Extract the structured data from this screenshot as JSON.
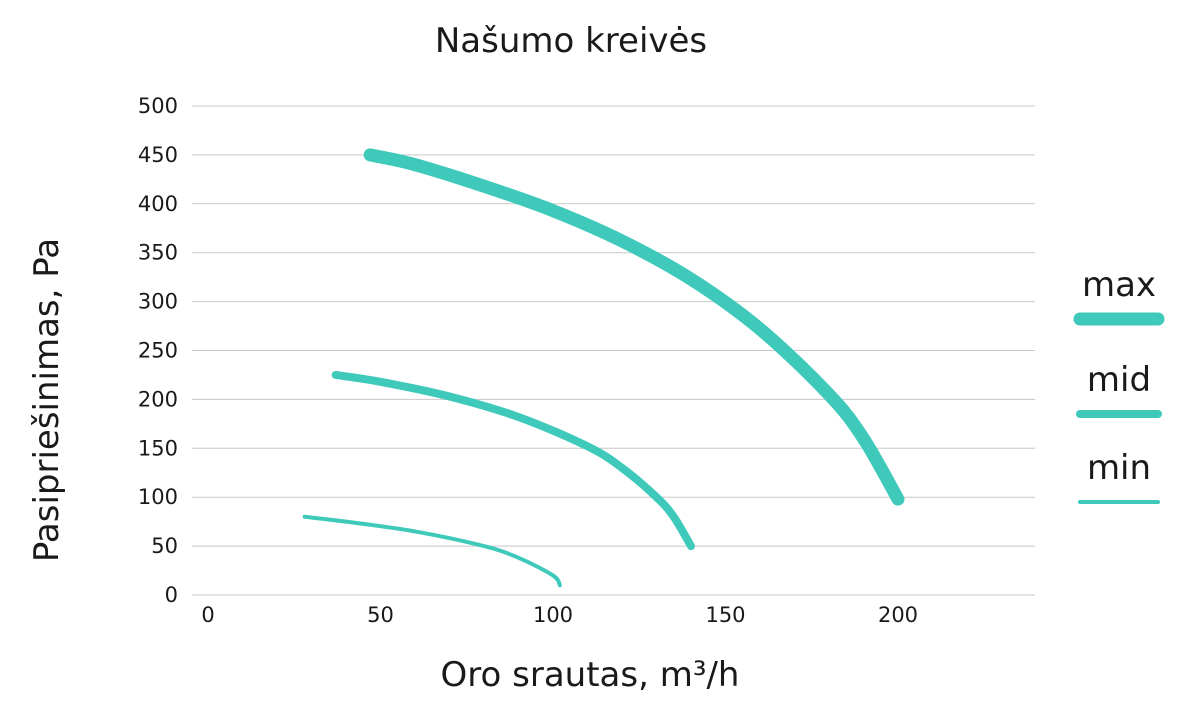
{
  "chart_data": {
    "type": "line",
    "title": "Našumo kreivės",
    "xlabel": "Oro srautas, m³/h",
    "ylabel": "Pasipriešinimas, Pa",
    "xlim": [
      0,
      240
    ],
    "ylim": [
      0,
      500
    ],
    "xticks": [
      "0",
      "50",
      "100",
      "150",
      "200"
    ],
    "yticks": [
      "0",
      "50",
      "100",
      "150",
      "200",
      "250",
      "300",
      "350",
      "400",
      "450",
      "500"
    ],
    "grid": "horizontal",
    "legend_position": "right",
    "color": "#3ec9bb",
    "series": [
      {
        "name": "max",
        "x": [
          47,
          60,
          80,
          100,
          120,
          140,
          160,
          180,
          190,
          200
        ],
        "y": [
          450,
          440,
          418,
          393,
          362,
          323,
          272,
          205,
          160,
          98
        ]
      },
      {
        "name": "mid",
        "x": [
          37,
          50,
          70,
          90,
          110,
          120,
          130,
          135,
          140
        ],
        "y": [
          225,
          218,
          203,
          182,
          152,
          130,
          100,
          80,
          50
        ]
      },
      {
        "name": "min",
        "x": [
          28,
          40,
          60,
          80,
          90,
          100,
          102
        ],
        "y": [
          80,
          75,
          65,
          50,
          38,
          20,
          10
        ]
      }
    ]
  }
}
